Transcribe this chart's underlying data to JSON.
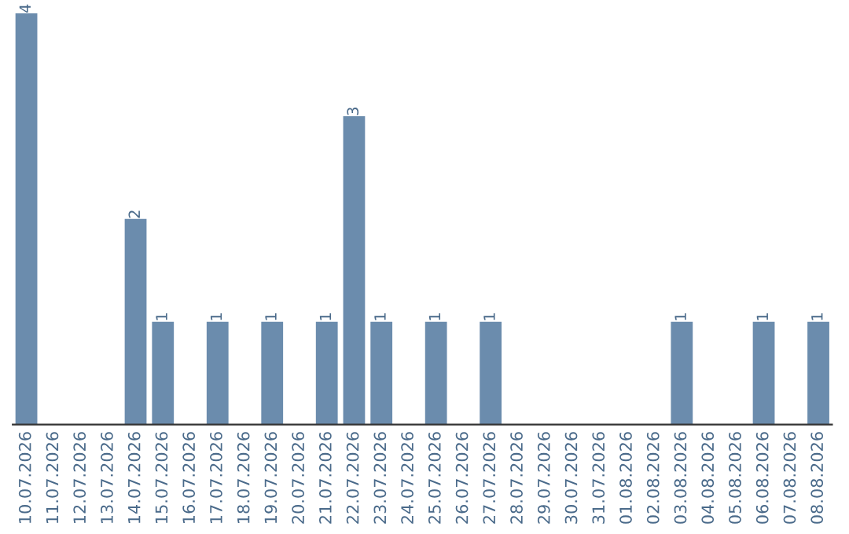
{
  "chart_data": {
    "type": "bar",
    "categories": [
      "10.07.2026",
      "11.07.2026",
      "12.07.2026",
      "13.07.2026",
      "14.07.2026",
      "15.07.2026",
      "16.07.2026",
      "17.07.2026",
      "18.07.2026",
      "19.07.2026",
      "20.07.2026",
      "21.07.2026",
      "22.07.2026",
      "23.07.2026",
      "24.07.2026",
      "25.07.2026",
      "26.07.2026",
      "27.07.2026",
      "28.07.2026",
      "29.07.2026",
      "30.07.2026",
      "31.07.2026",
      "01.08.2026",
      "02.08.2026",
      "03.08.2026",
      "04.08.2026",
      "05.08.2026",
      "06.08.2026",
      "07.08.2026",
      "08.08.2026"
    ],
    "values": [
      4,
      0,
      0,
      0,
      2,
      1,
      0,
      1,
      0,
      1,
      0,
      1,
      3,
      1,
      0,
      1,
      0,
      1,
      0,
      0,
      0,
      0,
      0,
      0,
      1,
      0,
      0,
      1,
      0,
      1
    ],
    "value_labels": [
      "4",
      null,
      null,
      null,
      "2",
      "1",
      null,
      "1",
      null,
      "1",
      null,
      "1",
      "3",
      "1",
      null,
      "1",
      null,
      "1",
      null,
      null,
      null,
      null,
      null,
      null,
      "1",
      null,
      null,
      "1",
      null,
      "1"
    ],
    "color": "#6b8cad",
    "tick_labels": "x",
    "grid": false,
    "legend": false
  }
}
